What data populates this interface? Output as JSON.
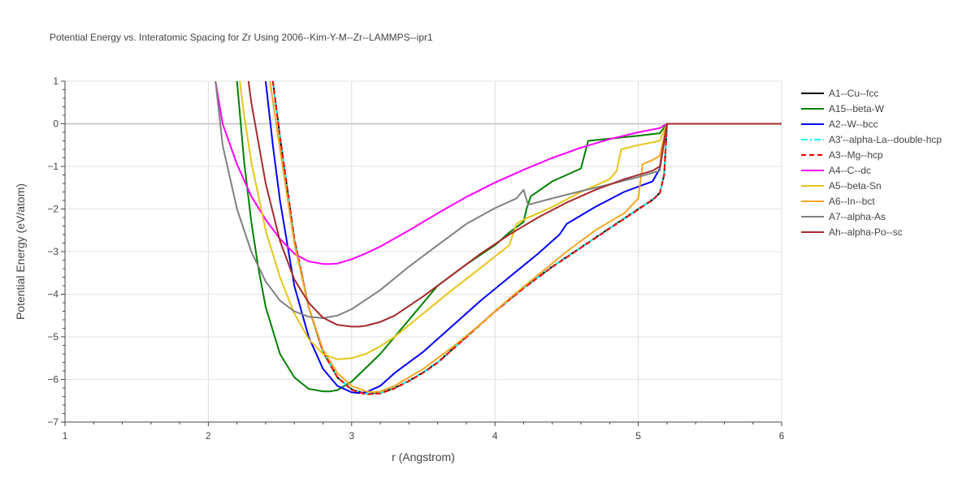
{
  "chart_data": {
    "type": "line",
    "title": "Potential Energy vs. Interatomic Spacing for Zr Using 2006--Kim-Y-M--Zr--LAMMPS--ipr1",
    "xlabel": "r (Angstrom)",
    "ylabel": "Potential Energy (eV/atom)",
    "xlim": [
      1,
      6
    ],
    "ylim": [
      -7,
      1
    ],
    "xticks": [
      1,
      2,
      3,
      4,
      5,
      6
    ],
    "xtick_labels": [
      "1",
      "2",
      "3",
      "4",
      "5",
      "6"
    ],
    "yticks": [
      1,
      0,
      -1,
      -2,
      -3,
      -4,
      -5,
      -6,
      -7
    ],
    "ytick_labels": [
      "1",
      "0",
      "−1",
      "−2",
      "−3",
      "−4",
      "−5",
      "−6",
      "−7"
    ],
    "grid": true,
    "legend_position": "top-right",
    "series": [
      {
        "name": "A1--Cu--fcc",
        "color": "#000000",
        "dash": "solid",
        "x": [
          2.45,
          2.5,
          2.6,
          2.7,
          2.8,
          2.9,
          3.0,
          3.1,
          3.2,
          3.3,
          3.4,
          3.5,
          3.6,
          3.8,
          4.0,
          4.2,
          4.4,
          4.6,
          4.8,
          5.0,
          5.1,
          5.15,
          5.18,
          5.2,
          5.5,
          6.0
        ],
        "y": [
          1.0,
          -0.3,
          -2.7,
          -4.3,
          -5.35,
          -5.95,
          -6.23,
          -6.34,
          -6.32,
          -6.2,
          -6.03,
          -5.83,
          -5.6,
          -5.0,
          -4.4,
          -3.85,
          -3.35,
          -2.9,
          -2.45,
          -2.0,
          -1.78,
          -1.62,
          -1.2,
          0.0,
          0.0,
          0.0
        ]
      },
      {
        "name": "A15--beta-W",
        "color": "#008000",
        "dash": "solid",
        "x": [
          2.2,
          2.25,
          2.3,
          2.35,
          2.4,
          2.5,
          2.6,
          2.7,
          2.8,
          2.85,
          2.9,
          3.0,
          3.2,
          3.4,
          3.6,
          3.8,
          4.0,
          4.1,
          4.2,
          4.22,
          4.25,
          4.4,
          4.6,
          4.65,
          4.8,
          5.0,
          5.15,
          5.2,
          5.5,
          6.0
        ],
        "y": [
          1.0,
          -0.9,
          -2.3,
          -3.4,
          -4.3,
          -5.4,
          -5.95,
          -6.22,
          -6.28,
          -6.28,
          -6.25,
          -6.05,
          -5.4,
          -4.6,
          -3.8,
          -3.3,
          -2.85,
          -2.55,
          -2.3,
          -2.0,
          -1.7,
          -1.35,
          -1.05,
          -0.4,
          -0.35,
          -0.28,
          -0.22,
          0.0,
          0.0,
          0.0
        ]
      },
      {
        "name": "A2--W--bcc",
        "color": "#0000ff",
        "dash": "solid",
        "x": [
          2.4,
          2.45,
          2.5,
          2.6,
          2.7,
          2.8,
          2.9,
          3.0,
          3.05,
          3.1,
          3.2,
          3.3,
          3.5,
          3.7,
          3.9,
          4.1,
          4.3,
          4.45,
          4.5,
          4.7,
          4.9,
          5.1,
          5.15,
          5.2,
          5.5,
          6.0
        ],
        "y": [
          1.0,
          -0.5,
          -1.8,
          -3.8,
          -5.0,
          -5.75,
          -6.15,
          -6.3,
          -6.32,
          -6.3,
          -6.15,
          -5.85,
          -5.35,
          -4.75,
          -4.15,
          -3.6,
          -3.05,
          -2.6,
          -2.35,
          -1.95,
          -1.6,
          -1.35,
          -1.05,
          0.0,
          0.0,
          0.0
        ]
      },
      {
        "name": "A3'--alpha-La--double-hcp",
        "color": "#00ffff",
        "dash": "dashdot",
        "x": [
          2.45,
          2.5,
          2.6,
          2.7,
          2.8,
          2.9,
          3.0,
          3.1,
          3.2,
          3.3,
          3.4,
          3.5,
          3.6,
          3.8,
          4.0,
          4.2,
          4.4,
          4.6,
          4.8,
          5.0,
          5.1,
          5.15,
          5.18,
          5.2,
          5.5,
          6.0
        ],
        "y": [
          1.0,
          -0.3,
          -2.7,
          -4.3,
          -5.35,
          -5.95,
          -6.23,
          -6.34,
          -6.32,
          -6.2,
          -6.03,
          -5.83,
          -5.6,
          -5.0,
          -4.4,
          -3.85,
          -3.35,
          -2.9,
          -2.45,
          -2.0,
          -1.78,
          -1.62,
          -1.2,
          0.0,
          0.0,
          0.0
        ]
      },
      {
        "name": "A3--Mg--hcp",
        "color": "#ff0000",
        "dash": "dash",
        "x": [
          2.45,
          2.5,
          2.6,
          2.7,
          2.8,
          2.9,
          3.0,
          3.1,
          3.2,
          3.3,
          3.4,
          3.5,
          3.6,
          3.8,
          4.0,
          4.2,
          4.4,
          4.6,
          4.8,
          5.0,
          5.1,
          5.15,
          5.18,
          5.2,
          5.5,
          6.0
        ],
        "y": [
          1.0,
          -0.3,
          -2.7,
          -4.3,
          -5.35,
          -5.95,
          -6.24,
          -6.35,
          -6.33,
          -6.21,
          -6.04,
          -5.84,
          -5.61,
          -5.01,
          -4.41,
          -3.86,
          -3.36,
          -2.91,
          -2.46,
          -2.01,
          -1.79,
          -1.63,
          -1.2,
          0.0,
          0.0,
          0.0
        ]
      },
      {
        "name": "A4--C--dc",
        "color": "#ff00ff",
        "dash": "solid",
        "x": [
          2.05,
          2.1,
          2.2,
          2.3,
          2.4,
          2.5,
          2.6,
          2.7,
          2.8,
          2.85,
          2.9,
          3.0,
          3.1,
          3.2,
          3.4,
          3.6,
          3.8,
          4.0,
          4.2,
          4.4,
          4.6,
          4.8,
          5.0,
          5.15,
          5.2,
          5.5,
          6.0
        ],
        "y": [
          1.0,
          0.0,
          -0.95,
          -1.7,
          -2.25,
          -2.7,
          -3.05,
          -3.23,
          -3.29,
          -3.29,
          -3.28,
          -3.18,
          -3.04,
          -2.88,
          -2.5,
          -2.1,
          -1.72,
          -1.38,
          -1.08,
          -0.8,
          -0.56,
          -0.36,
          -0.2,
          -0.1,
          0.0,
          0.0,
          0.0
        ]
      },
      {
        "name": "A5--beta-Sn",
        "color": "#e6c619",
        "dash": "solid",
        "x": [
          2.22,
          2.25,
          2.3,
          2.4,
          2.5,
          2.6,
          2.7,
          2.8,
          2.9,
          3.0,
          3.1,
          3.2,
          3.3,
          3.5,
          3.7,
          3.9,
          4.1,
          4.15,
          4.2,
          4.4,
          4.6,
          4.8,
          4.85,
          4.88,
          5.0,
          5.15,
          5.2,
          5.5,
          6.0
        ],
        "y": [
          1.0,
          0.2,
          -0.9,
          -2.5,
          -3.6,
          -4.45,
          -5.05,
          -5.4,
          -5.53,
          -5.5,
          -5.4,
          -5.22,
          -5.0,
          -4.45,
          -3.9,
          -3.38,
          -2.85,
          -2.35,
          -2.25,
          -1.95,
          -1.6,
          -1.3,
          -1.1,
          -0.6,
          -0.5,
          -0.4,
          0.0,
          0.0,
          0.0
        ]
      },
      {
        "name": "A6--In--bct",
        "color": "#f5a623",
        "dash": "solid",
        "x": [
          2.43,
          2.5,
          2.6,
          2.7,
          2.8,
          2.9,
          3.0,
          3.1,
          3.15,
          3.2,
          3.3,
          3.5,
          3.7,
          3.9,
          4.1,
          4.3,
          4.5,
          4.7,
          4.9,
          5.0,
          5.03,
          5.1,
          5.15,
          5.2,
          5.5,
          6.0
        ],
        "y": [
          1.0,
          -0.6,
          -2.8,
          -4.3,
          -5.3,
          -5.85,
          -6.15,
          -6.28,
          -6.3,
          -6.28,
          -6.15,
          -5.75,
          -5.25,
          -4.7,
          -4.1,
          -3.55,
          -3.0,
          -2.5,
          -2.1,
          -1.75,
          -0.95,
          -0.85,
          -0.75,
          0.0,
          0.0,
          0.0
        ]
      },
      {
        "name": "A7--alpha-As",
        "color": "#808080",
        "dash": "solid",
        "x": [
          2.05,
          2.1,
          2.2,
          2.3,
          2.4,
          2.5,
          2.6,
          2.7,
          2.8,
          2.9,
          3.0,
          3.2,
          3.4,
          3.6,
          3.8,
          4.0,
          4.15,
          4.2,
          4.23,
          4.4,
          4.6,
          4.8,
          5.0,
          5.15,
          5.2,
          5.5,
          6.0
        ],
        "y": [
          1.0,
          -0.5,
          -2.0,
          -3.0,
          -3.7,
          -4.15,
          -4.4,
          -4.53,
          -4.56,
          -4.5,
          -4.35,
          -3.9,
          -3.35,
          -2.85,
          -2.35,
          -1.98,
          -1.75,
          -1.55,
          -1.9,
          -1.75,
          -1.58,
          -1.42,
          -1.25,
          -1.1,
          0.0,
          0.0,
          0.0
        ]
      },
      {
        "name": "Ah--alpha-Po--sc",
        "color": "#a52a2a",
        "dash": "solid",
        "x": [
          2.28,
          2.3,
          2.4,
          2.5,
          2.6,
          2.7,
          2.8,
          2.9,
          3.0,
          3.05,
          3.1,
          3.2,
          3.3,
          3.5,
          3.7,
          3.9,
          4.1,
          4.3,
          4.5,
          4.7,
          4.9,
          5.1,
          5.15,
          5.2,
          5.5,
          6.0
        ],
        "y": [
          1.0,
          0.5,
          -1.4,
          -2.75,
          -3.65,
          -4.2,
          -4.55,
          -4.72,
          -4.76,
          -4.76,
          -4.74,
          -4.65,
          -4.5,
          -4.05,
          -3.55,
          -3.05,
          -2.6,
          -2.2,
          -1.85,
          -1.55,
          -1.3,
          -1.1,
          -1.0,
          0.0,
          0.0,
          0.0
        ]
      }
    ]
  }
}
